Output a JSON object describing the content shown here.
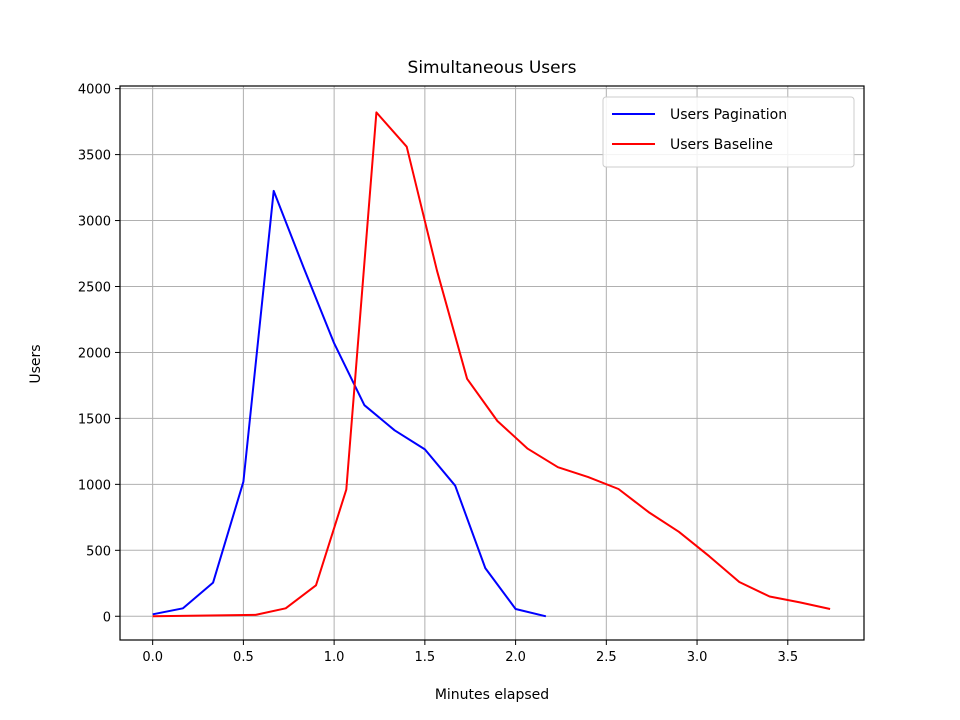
{
  "chart_data": {
    "type": "line",
    "title": "Simultaneous Users",
    "xlabel": "Minutes elapsed",
    "ylabel": "Users",
    "xlim": [
      -0.18,
      3.92
    ],
    "ylim": [
      -180,
      4020
    ],
    "xticks": [
      0.0,
      0.5,
      1.0,
      1.5,
      2.0,
      2.5,
      3.0,
      3.5
    ],
    "xtick_labels": [
      "0.0",
      "0.5",
      "1.0",
      "1.5",
      "2.0",
      "2.5",
      "3.0",
      "3.5"
    ],
    "yticks": [
      0,
      500,
      1000,
      1500,
      2000,
      2500,
      3000,
      3500,
      4000
    ],
    "ytick_labels": [
      "0",
      "500",
      "1000",
      "1500",
      "2000",
      "2500",
      "3000",
      "3500",
      "4000"
    ],
    "grid": true,
    "legend_position": "top-right",
    "series": [
      {
        "name": "Users Pagination",
        "color": "#0000ff",
        "x": [
          0.0,
          0.167,
          0.333,
          0.5,
          0.667,
          0.833,
          1.0,
          1.167,
          1.333,
          1.5,
          1.667,
          1.833,
          2.0,
          2.167
        ],
        "y": [
          15,
          60,
          255,
          1020,
          3225,
          2640,
          2070,
          1600,
          1410,
          1265,
          990,
          365,
          55,
          0
        ]
      },
      {
        "name": "Users Baseline",
        "color": "#ff0000",
        "x": [
          0.0,
          0.567,
          0.733,
          0.9,
          1.067,
          1.233,
          1.4,
          1.567,
          1.733,
          1.9,
          2.067,
          2.233,
          2.4,
          2.567,
          2.733,
          2.9,
          3.067,
          3.233,
          3.4,
          3.567,
          3.733
        ],
        "y": [
          0,
          10,
          60,
          235,
          960,
          3820,
          3560,
          2620,
          1800,
          1480,
          1270,
          1130,
          1055,
          965,
          790,
          640,
          455,
          260,
          150,
          105,
          55
        ]
      }
    ]
  }
}
